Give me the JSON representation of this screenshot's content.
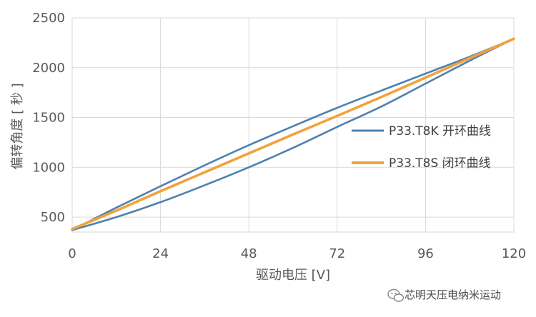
{
  "chart_data": {
    "type": "line",
    "xlabel": "驱动电压 [V]",
    "ylabel": "偏转角度 [ 秒 ]",
    "xlim": [
      0,
      120
    ],
    "ylim": [
      350,
      2500
    ],
    "xticks": [
      0,
      24,
      48,
      72,
      96,
      120
    ],
    "yticks": [
      500,
      1000,
      1500,
      2000,
      2500
    ],
    "x_tick_labels": [
      "0",
      "24",
      "48",
      "72",
      "96",
      "120"
    ],
    "y_tick_labels": [
      "500",
      "1000",
      "1500",
      "2000",
      "2500"
    ],
    "grid": true,
    "legend_position": "right",
    "series": [
      {
        "name": "P33.T8K 开环曲线",
        "color": "#4e81ae",
        "curves": [
          {
            "x": [
              0,
              12,
              24,
              36,
              48,
              60,
              72,
              84,
              96,
              108,
              120
            ],
            "y": [
              370,
              595,
              810,
              1020,
              1222,
              1412,
              1597,
              1770,
              1940,
              2110,
              2290
            ]
          },
          {
            "x": [
              0,
              12,
              24,
              36,
              48,
              60,
              72,
              84,
              96,
              108,
              120
            ],
            "y": [
              370,
              500,
              650,
              820,
              1000,
              1195,
              1405,
              1610,
              1840,
              2070,
              2290
            ]
          }
        ]
      },
      {
        "name": "P33.T8S 闭环曲线",
        "color": "#f2a23c",
        "curves": [
          {
            "x": [
              0,
              12,
              24,
              36,
              48,
              60,
              72,
              84,
              96,
              108,
              120
            ],
            "y": [
              380,
              565,
              760,
              950,
              1140,
              1330,
              1515,
              1705,
              1900,
              2095,
              2290
            ]
          }
        ]
      }
    ]
  },
  "watermark": {
    "text": "芯明天压电纳米运动",
    "icon": "wechat-icon"
  }
}
